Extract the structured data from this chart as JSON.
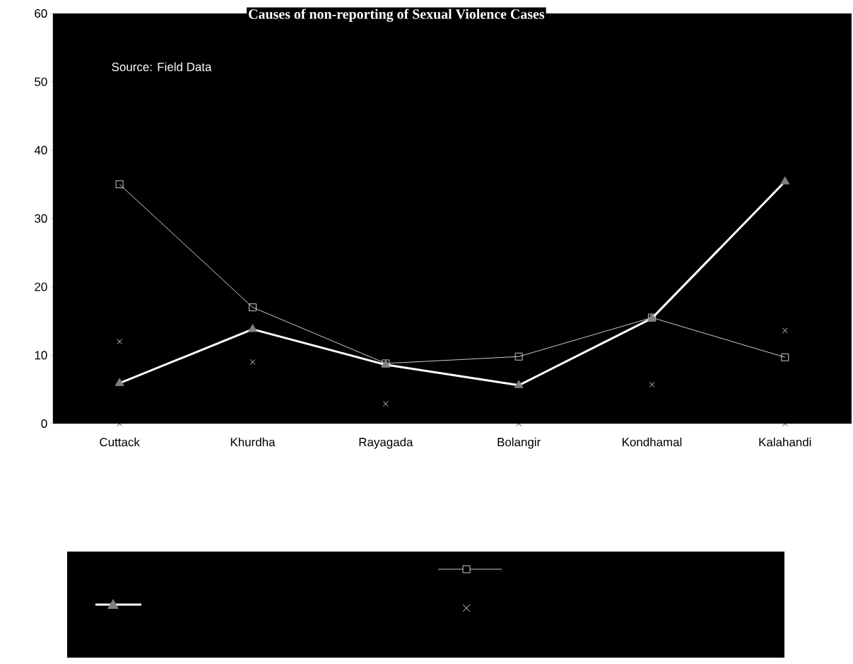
{
  "chart_data": {
    "type": "line",
    "title": "Causes of non-reporting of Sexual Violence Cases",
    "annotations": [
      "Source: Field Data"
    ],
    "categories": [
      "Cuttack",
      "Khurdha",
      "Rayagada",
      "Bolangir",
      "Kondhamal",
      "Kalahandi"
    ],
    "ylim": [
      0,
      60
    ],
    "yticks": [
      0,
      10,
      20,
      30,
      40,
      50,
      60
    ],
    "grid": false,
    "series": [
      {
        "color": "#ffffff",
        "marker": "square",
        "values": [
          35,
          17,
          8.8,
          9.8,
          15.5,
          9.7
        ]
      },
      {
        "color": "#ffffff",
        "marker": "triangle",
        "values": [
          5.9,
          13.8,
          8.6,
          5.6,
          15.4,
          35.4
        ]
      },
      {
        "type": "scatter",
        "color": "#ffffff",
        "marker": "cross",
        "values": [
          12,
          9,
          2.9,
          null,
          5.7,
          13.6
        ]
      },
      {
        "type": "scatter",
        "color": "#000000",
        "marker": "cross",
        "values": [
          0,
          null,
          null,
          0,
          null,
          0
        ]
      }
    ]
  }
}
